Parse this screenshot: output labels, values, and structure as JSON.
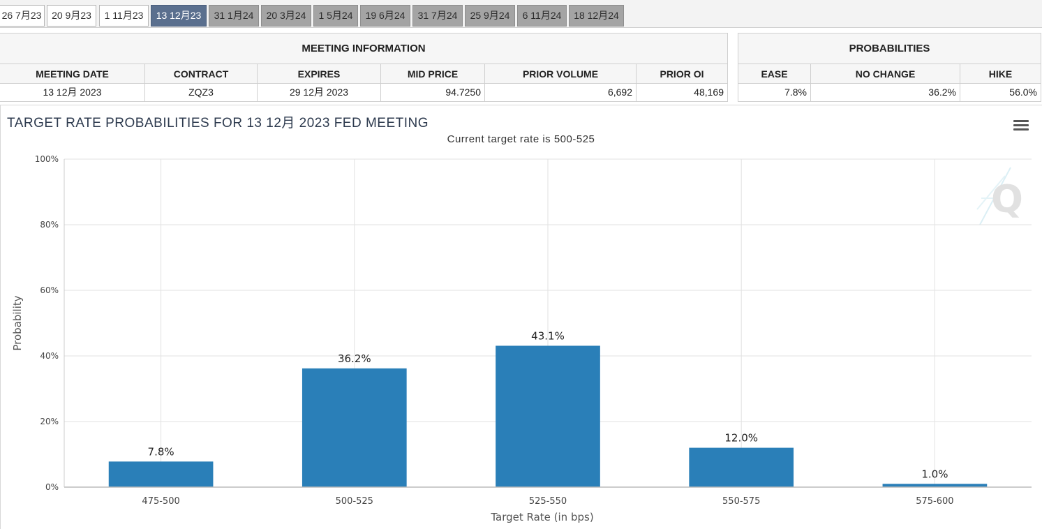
{
  "tabs": [
    {
      "label": "26 7月23",
      "state": "light"
    },
    {
      "label": "20 9月23",
      "state": "light"
    },
    {
      "label": "1 11月23",
      "state": "light"
    },
    {
      "label": "13 12月23",
      "state": "active"
    },
    {
      "label": "31 1月24",
      "state": "gray"
    },
    {
      "label": "20 3月24",
      "state": "gray"
    },
    {
      "label": "1 5月24",
      "state": "gray"
    },
    {
      "label": "19 6月24",
      "state": "gray"
    },
    {
      "label": "31 7月24",
      "state": "gray"
    },
    {
      "label": "25 9月24",
      "state": "gray"
    },
    {
      "label": "6 11月24",
      "state": "gray"
    },
    {
      "label": "18 12月24",
      "state": "gray"
    }
  ],
  "meeting": {
    "title": "MEETING INFORMATION",
    "headers": [
      "MEETING DATE",
      "CONTRACT",
      "EXPIRES",
      "MID PRICE",
      "PRIOR VOLUME",
      "PRIOR OI"
    ],
    "values": [
      "13 12月 2023",
      "ZQZ3",
      "29 12月 2023",
      "94.7250",
      "6,692",
      "48,169"
    ]
  },
  "probabilities": {
    "title": "PROBABILITIES",
    "headers": [
      "EASE",
      "NO CHANGE",
      "HIKE"
    ],
    "values": [
      "7.8%",
      "36.2%",
      "56.0%"
    ]
  },
  "chart_data": {
    "type": "bar",
    "title": "TARGET RATE PROBABILITIES FOR 13 12月 2023 FED MEETING",
    "subtitle": "Current target rate is 500-525",
    "xlabel": "Target Rate (in bps)",
    "ylabel": "Probability",
    "categories": [
      "475-500",
      "500-525",
      "525-550",
      "550-575",
      "575-600"
    ],
    "values": [
      7.8,
      36.2,
      43.1,
      12.0,
      1.0
    ],
    "data_labels": [
      "7.8%",
      "36.2%",
      "43.1%",
      "12.0%",
      "1.0%"
    ],
    "ylim": [
      0,
      100
    ],
    "yticks": [
      "0%",
      "20%",
      "40%",
      "60%",
      "80%",
      "100%"
    ],
    "grid": true,
    "bar_color": "#2a7fb8"
  },
  "icons": {
    "menu": "hamburger-menu-icon",
    "watermark": "q-logo-watermark"
  }
}
